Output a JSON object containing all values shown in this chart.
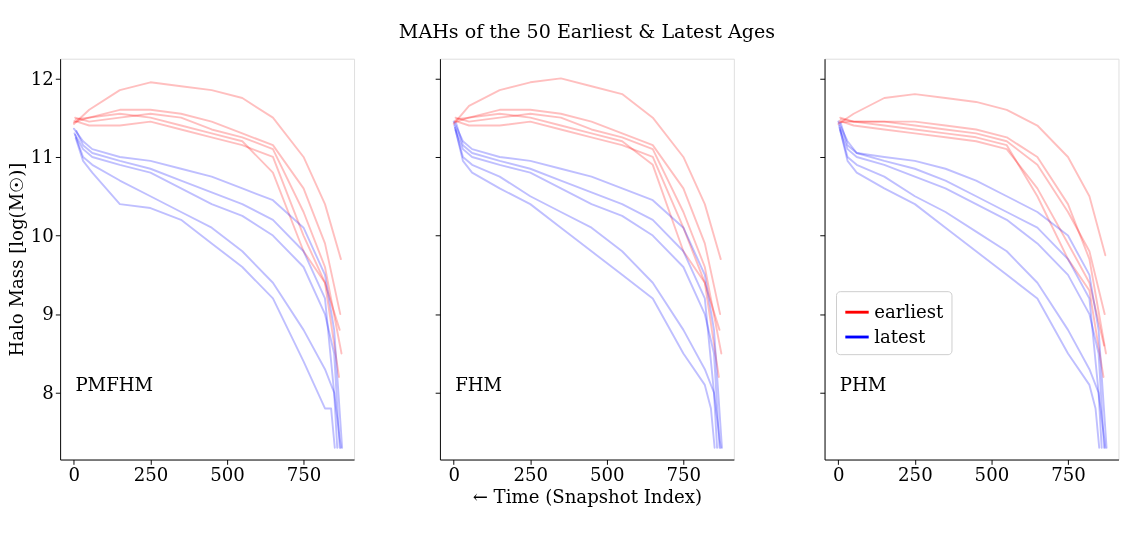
{
  "chart_data": [
    {
      "type": "line",
      "ylabel": "Halo Mass [log(M☉)]",
      "annotations": [
        "PMFHM"
      ],
      "xlim": [
        -45,
        915
      ],
      "ylim": [
        7.15,
        12.25
      ],
      "xticks": [
        0,
        250,
        500,
        750
      ],
      "yticks": [
        8,
        9,
        10,
        11,
        12
      ],
      "legend": false,
      "series": [
        {
          "color": "#ff0000",
          "x": [
            0,
            50,
            150,
            250,
            350,
            450,
            550,
            650,
            750,
            820,
            872
          ],
          "values": [
            11.42,
            11.6,
            11.85,
            11.95,
            11.9,
            11.85,
            11.75,
            11.5,
            11.0,
            10.4,
            9.7
          ]
        },
        {
          "color": "#ff0000",
          "x": [
            0,
            50,
            150,
            250,
            350,
            450,
            550,
            650,
            750,
            820,
            870
          ],
          "values": [
            11.44,
            11.5,
            11.6,
            11.6,
            11.55,
            11.45,
            11.3,
            11.15,
            10.6,
            9.9,
            9.0
          ]
        },
        {
          "color": "#ff0000",
          "x": [
            2,
            50,
            150,
            250,
            350,
            450,
            550,
            650,
            750,
            820,
            868
          ],
          "values": [
            11.46,
            11.4,
            11.4,
            11.45,
            11.35,
            11.25,
            11.15,
            11.0,
            10.0,
            9.4,
            8.8
          ]
        },
        {
          "color": "#ff0000",
          "x": [
            4,
            50,
            150,
            250,
            350,
            450,
            550,
            650,
            750,
            820,
            874
          ],
          "values": [
            11.5,
            11.45,
            11.5,
            11.55,
            11.5,
            11.35,
            11.25,
            11.1,
            10.3,
            9.6,
            8.5
          ]
        },
        {
          "color": "#ff0000",
          "x": [
            6,
            50,
            150,
            250,
            350,
            450,
            550,
            650,
            750,
            820,
            866
          ],
          "values": [
            11.48,
            11.5,
            11.55,
            11.5,
            11.4,
            11.3,
            11.2,
            10.8,
            9.8,
            9.4,
            8.2
          ]
        },
        {
          "color": "#0000ff",
          "x": [
            0,
            30,
            60,
            150,
            250,
            350,
            450,
            550,
            650,
            750,
            820,
            850,
            876
          ],
          "values": [
            11.36,
            11.2,
            11.1,
            11.0,
            10.95,
            10.85,
            10.75,
            10.6,
            10.45,
            10.1,
            9.5,
            8.8,
            7.3
          ]
        },
        {
          "color": "#0000ff",
          "x": [
            2,
            30,
            60,
            150,
            250,
            350,
            450,
            550,
            650,
            750,
            820,
            850,
            868
          ],
          "values": [
            11.3,
            11.1,
            11.0,
            10.9,
            10.8,
            10.6,
            10.4,
            10.25,
            10.0,
            9.6,
            9.0,
            8.5,
            7.3
          ]
        },
        {
          "color": "#0000ff",
          "x": [
            4,
            30,
            60,
            150,
            250,
            350,
            450,
            550,
            650,
            750,
            820,
            850,
            860
          ],
          "values": [
            11.28,
            11.0,
            10.9,
            10.7,
            10.5,
            10.3,
            10.1,
            9.8,
            9.4,
            8.8,
            8.3,
            8.0,
            7.3
          ]
        },
        {
          "color": "#0000ff",
          "x": [
            6,
            30,
            60,
            150,
            250,
            350,
            450,
            550,
            650,
            750,
            820,
            840,
            852
          ],
          "values": [
            11.24,
            10.95,
            10.8,
            10.4,
            10.35,
            10.2,
            9.9,
            9.6,
            9.2,
            8.4,
            7.8,
            7.8,
            7.3
          ]
        },
        {
          "color": "#0000ff",
          "x": [
            8,
            30,
            60,
            150,
            250,
            350,
            450,
            550,
            650,
            750,
            820,
            850,
            872
          ],
          "values": [
            11.33,
            11.15,
            11.05,
            10.95,
            10.85,
            10.7,
            10.55,
            10.4,
            10.2,
            9.8,
            9.2,
            8.0,
            7.3
          ]
        }
      ]
    },
    {
      "type": "line",
      "title": "MAHs of the 50 Earliest & Latest Ages",
      "xlabel": "← Time (Snapshot Index)",
      "annotations": [
        "FHM"
      ],
      "xlim": [
        -45,
        915
      ],
      "ylim": [
        7.15,
        12.25
      ],
      "xticks": [
        0,
        250,
        500,
        750
      ],
      "yticks": [
        8,
        9,
        10,
        11,
        12
      ],
      "tick_labels": "x",
      "legend": false,
      "series": [
        {
          "color": "#ff0000",
          "x": [
            0,
            50,
            150,
            250,
            350,
            450,
            550,
            650,
            750,
            820,
            872
          ],
          "values": [
            11.42,
            11.65,
            11.85,
            11.95,
            12.0,
            11.9,
            11.8,
            11.5,
            11.0,
            10.4,
            9.7
          ]
        },
        {
          "color": "#ff0000",
          "x": [
            2,
            50,
            150,
            250,
            350,
            450,
            550,
            650,
            750,
            820,
            870
          ],
          "values": [
            11.44,
            11.5,
            11.6,
            11.6,
            11.55,
            11.45,
            11.3,
            11.15,
            10.6,
            9.9,
            9.0
          ]
        },
        {
          "color": "#ff0000",
          "x": [
            4,
            50,
            150,
            250,
            350,
            450,
            550,
            650,
            750,
            820,
            868
          ],
          "values": [
            11.46,
            11.4,
            11.4,
            11.45,
            11.35,
            11.25,
            11.15,
            11.0,
            10.1,
            9.4,
            8.8
          ]
        },
        {
          "color": "#ff0000",
          "x": [
            6,
            50,
            150,
            250,
            350,
            450,
            550,
            650,
            750,
            820,
            874
          ],
          "values": [
            11.5,
            11.45,
            11.5,
            11.55,
            11.5,
            11.35,
            11.25,
            11.1,
            10.3,
            9.6,
            8.5
          ]
        },
        {
          "color": "#ff0000",
          "x": [
            8,
            50,
            150,
            250,
            350,
            450,
            550,
            650,
            750,
            820,
            866
          ],
          "values": [
            11.48,
            11.5,
            11.55,
            11.5,
            11.4,
            11.3,
            11.2,
            10.9,
            9.8,
            9.4,
            8.2
          ]
        },
        {
          "color": "#0000ff",
          "x": [
            0,
            30,
            60,
            150,
            250,
            350,
            450,
            550,
            650,
            750,
            820,
            850,
            876
          ],
          "values": [
            11.45,
            11.2,
            11.1,
            11.0,
            10.95,
            10.85,
            10.75,
            10.6,
            10.45,
            10.1,
            9.5,
            8.8,
            7.3
          ]
        },
        {
          "color": "#0000ff",
          "x": [
            2,
            30,
            60,
            150,
            250,
            350,
            450,
            550,
            650,
            750,
            820,
            850,
            868
          ],
          "values": [
            11.4,
            11.1,
            11.0,
            10.9,
            10.8,
            10.6,
            10.4,
            10.25,
            10.0,
            9.6,
            9.0,
            8.5,
            7.3
          ]
        },
        {
          "color": "#0000ff",
          "x": [
            4,
            30,
            60,
            150,
            250,
            350,
            450,
            550,
            650,
            750,
            820,
            850,
            860
          ],
          "values": [
            11.37,
            11.0,
            10.9,
            10.75,
            10.5,
            10.3,
            10.1,
            9.8,
            9.4,
            8.8,
            8.3,
            8.0,
            7.3
          ]
        },
        {
          "color": "#0000ff",
          "x": [
            6,
            30,
            60,
            150,
            250,
            350,
            450,
            550,
            650,
            750,
            820,
            840,
            852
          ],
          "values": [
            11.34,
            10.95,
            10.8,
            10.6,
            10.4,
            10.1,
            9.8,
            9.5,
            9.2,
            8.5,
            8.1,
            7.8,
            7.3
          ]
        },
        {
          "color": "#0000ff",
          "x": [
            8,
            30,
            60,
            150,
            250,
            350,
            450,
            550,
            650,
            750,
            820,
            850,
            872
          ],
          "values": [
            11.43,
            11.15,
            11.05,
            10.95,
            10.85,
            10.7,
            10.55,
            10.4,
            10.2,
            9.8,
            9.2,
            8.0,
            7.3
          ]
        }
      ]
    },
    {
      "type": "line",
      "annotations": [
        "PHM"
      ],
      "xlim": [
        -45,
        915
      ],
      "ylim": [
        7.15,
        12.25
      ],
      "xticks": [
        0,
        250,
        500,
        750
      ],
      "yticks": [
        8,
        9,
        10,
        11,
        12
      ],
      "tick_labels": "x",
      "legend": "bottom left",
      "series": [
        {
          "name": "earliest",
          "color": "#ff0000",
          "x": [
            0,
            50,
            150,
            250,
            350,
            450,
            550,
            650,
            750,
            820,
            872
          ],
          "values": [
            11.42,
            11.55,
            11.75,
            11.8,
            11.75,
            11.7,
            11.6,
            11.4,
            11.0,
            10.5,
            9.75
          ]
        },
        {
          "color": "#ff0000",
          "x": [
            2,
            50,
            150,
            250,
            350,
            450,
            550,
            650,
            750,
            820,
            870
          ],
          "values": [
            11.44,
            11.45,
            11.45,
            11.4,
            11.35,
            11.3,
            11.2,
            10.9,
            10.3,
            9.8,
            9.0
          ]
        },
        {
          "color": "#ff0000",
          "x": [
            4,
            50,
            150,
            250,
            350,
            450,
            550,
            650,
            750,
            820,
            868
          ],
          "values": [
            11.46,
            11.4,
            11.35,
            11.3,
            11.25,
            11.2,
            11.1,
            10.6,
            9.9,
            9.4,
            8.6
          ]
        },
        {
          "color": "#ff0000",
          "x": [
            6,
            50,
            150,
            250,
            350,
            450,
            550,
            650,
            750,
            820,
            874
          ],
          "values": [
            11.5,
            11.45,
            11.45,
            11.45,
            11.4,
            11.35,
            11.25,
            11.0,
            10.4,
            9.7,
            8.5
          ]
        },
        {
          "color": "#ff0000",
          "x": [
            8,
            50,
            150,
            250,
            350,
            450,
            550,
            650,
            750,
            820,
            866
          ],
          "values": [
            11.48,
            11.45,
            11.4,
            11.35,
            11.3,
            11.25,
            11.15,
            10.5,
            9.7,
            9.3,
            8.2
          ]
        },
        {
          "name": "latest",
          "color": "#0000ff",
          "x": [
            0,
            30,
            60,
            150,
            250,
            350,
            450,
            550,
            650,
            750,
            820,
            850,
            876
          ],
          "values": [
            11.45,
            11.2,
            11.05,
            11.0,
            10.95,
            10.85,
            10.7,
            10.5,
            10.3,
            10.0,
            9.5,
            8.8,
            7.3
          ]
        },
        {
          "color": "#0000ff",
          "x": [
            2,
            30,
            60,
            150,
            250,
            350,
            450,
            550,
            650,
            750,
            820,
            850,
            868
          ],
          "values": [
            11.4,
            11.1,
            11.0,
            10.9,
            10.75,
            10.6,
            10.4,
            10.2,
            9.9,
            9.5,
            9.0,
            8.5,
            7.3
          ]
        },
        {
          "color": "#0000ff",
          "x": [
            4,
            30,
            60,
            150,
            250,
            350,
            450,
            550,
            650,
            750,
            820,
            850,
            860
          ],
          "values": [
            11.37,
            11.0,
            10.9,
            10.75,
            10.5,
            10.3,
            10.05,
            9.8,
            9.4,
            8.8,
            8.3,
            8.0,
            7.3
          ]
        },
        {
          "color": "#0000ff",
          "x": [
            6,
            30,
            60,
            150,
            250,
            350,
            450,
            550,
            650,
            750,
            820,
            840,
            852
          ],
          "values": [
            11.34,
            10.95,
            10.8,
            10.6,
            10.4,
            10.1,
            9.8,
            9.5,
            9.2,
            8.5,
            8.1,
            7.8,
            7.3
          ]
        },
        {
          "color": "#0000ff",
          "x": [
            8,
            30,
            60,
            150,
            250,
            350,
            450,
            550,
            650,
            750,
            820,
            850,
            872
          ],
          "values": [
            11.43,
            11.15,
            11.05,
            10.95,
            10.85,
            10.7,
            10.5,
            10.3,
            10.1,
            9.7,
            9.2,
            8.0,
            7.3
          ]
        }
      ]
    }
  ]
}
